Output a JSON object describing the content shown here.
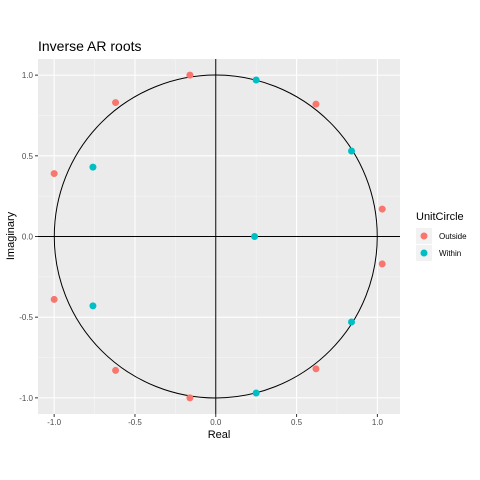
{
  "chart_data": {
    "type": "scatter",
    "title": "Inverse AR roots",
    "xlabel": "Real",
    "ylabel": "Imaginary",
    "xlim": [
      -1.1,
      1.14
    ],
    "ylim": [
      -1.1,
      1.1
    ],
    "x_ticks": [
      {
        "value": -1.0,
        "label": "-1.0"
      },
      {
        "value": -0.5,
        "label": "-0.5"
      },
      {
        "value": 0.0,
        "label": "0.0"
      },
      {
        "value": 0.5,
        "label": "0.5"
      },
      {
        "value": 1.0,
        "label": "1.0"
      }
    ],
    "y_ticks": [
      {
        "value": -1.0,
        "label": "-1.0"
      },
      {
        "value": -0.5,
        "label": "-0.5"
      },
      {
        "value": 0.0,
        "label": "0.0"
      },
      {
        "value": 0.5,
        "label": "0.5"
      },
      {
        "value": 1.0,
        "label": "1.0"
      }
    ],
    "grid": true,
    "reference_lines": {
      "x": 0,
      "y": 0
    },
    "unit_circle": {
      "center": [
        0,
        0
      ],
      "radius": 1
    },
    "legend": {
      "title": "UnitCircle",
      "position": "right",
      "entries": [
        {
          "label": "Outside",
          "color": "#f8766d"
        },
        {
          "label": "Within",
          "color": "#00bfc4"
        }
      ]
    },
    "series": [
      {
        "name": "Outside",
        "color": "#f8766d",
        "points": [
          {
            "x": -0.16,
            "y": 1.0
          },
          {
            "x": 0.62,
            "y": 0.82
          },
          {
            "x": 1.03,
            "y": 0.17
          },
          {
            "x": 1.03,
            "y": -0.17
          },
          {
            "x": 0.62,
            "y": -0.82
          },
          {
            "x": -0.16,
            "y": -1.0
          },
          {
            "x": -0.62,
            "y": -0.83
          },
          {
            "x": -1.0,
            "y": -0.39
          },
          {
            "x": -1.0,
            "y": 0.39
          },
          {
            "x": -0.62,
            "y": 0.83
          }
        ]
      },
      {
        "name": "Within",
        "color": "#00bfc4",
        "points": [
          {
            "x": 0.25,
            "y": 0.97
          },
          {
            "x": 0.84,
            "y": 0.53
          },
          {
            "x": 0.24,
            "y": 0.0
          },
          {
            "x": 0.84,
            "y": -0.53
          },
          {
            "x": 0.25,
            "y": -0.97
          },
          {
            "x": -0.76,
            "y": -0.43
          },
          {
            "x": -0.76,
            "y": 0.43
          }
        ]
      }
    ]
  }
}
